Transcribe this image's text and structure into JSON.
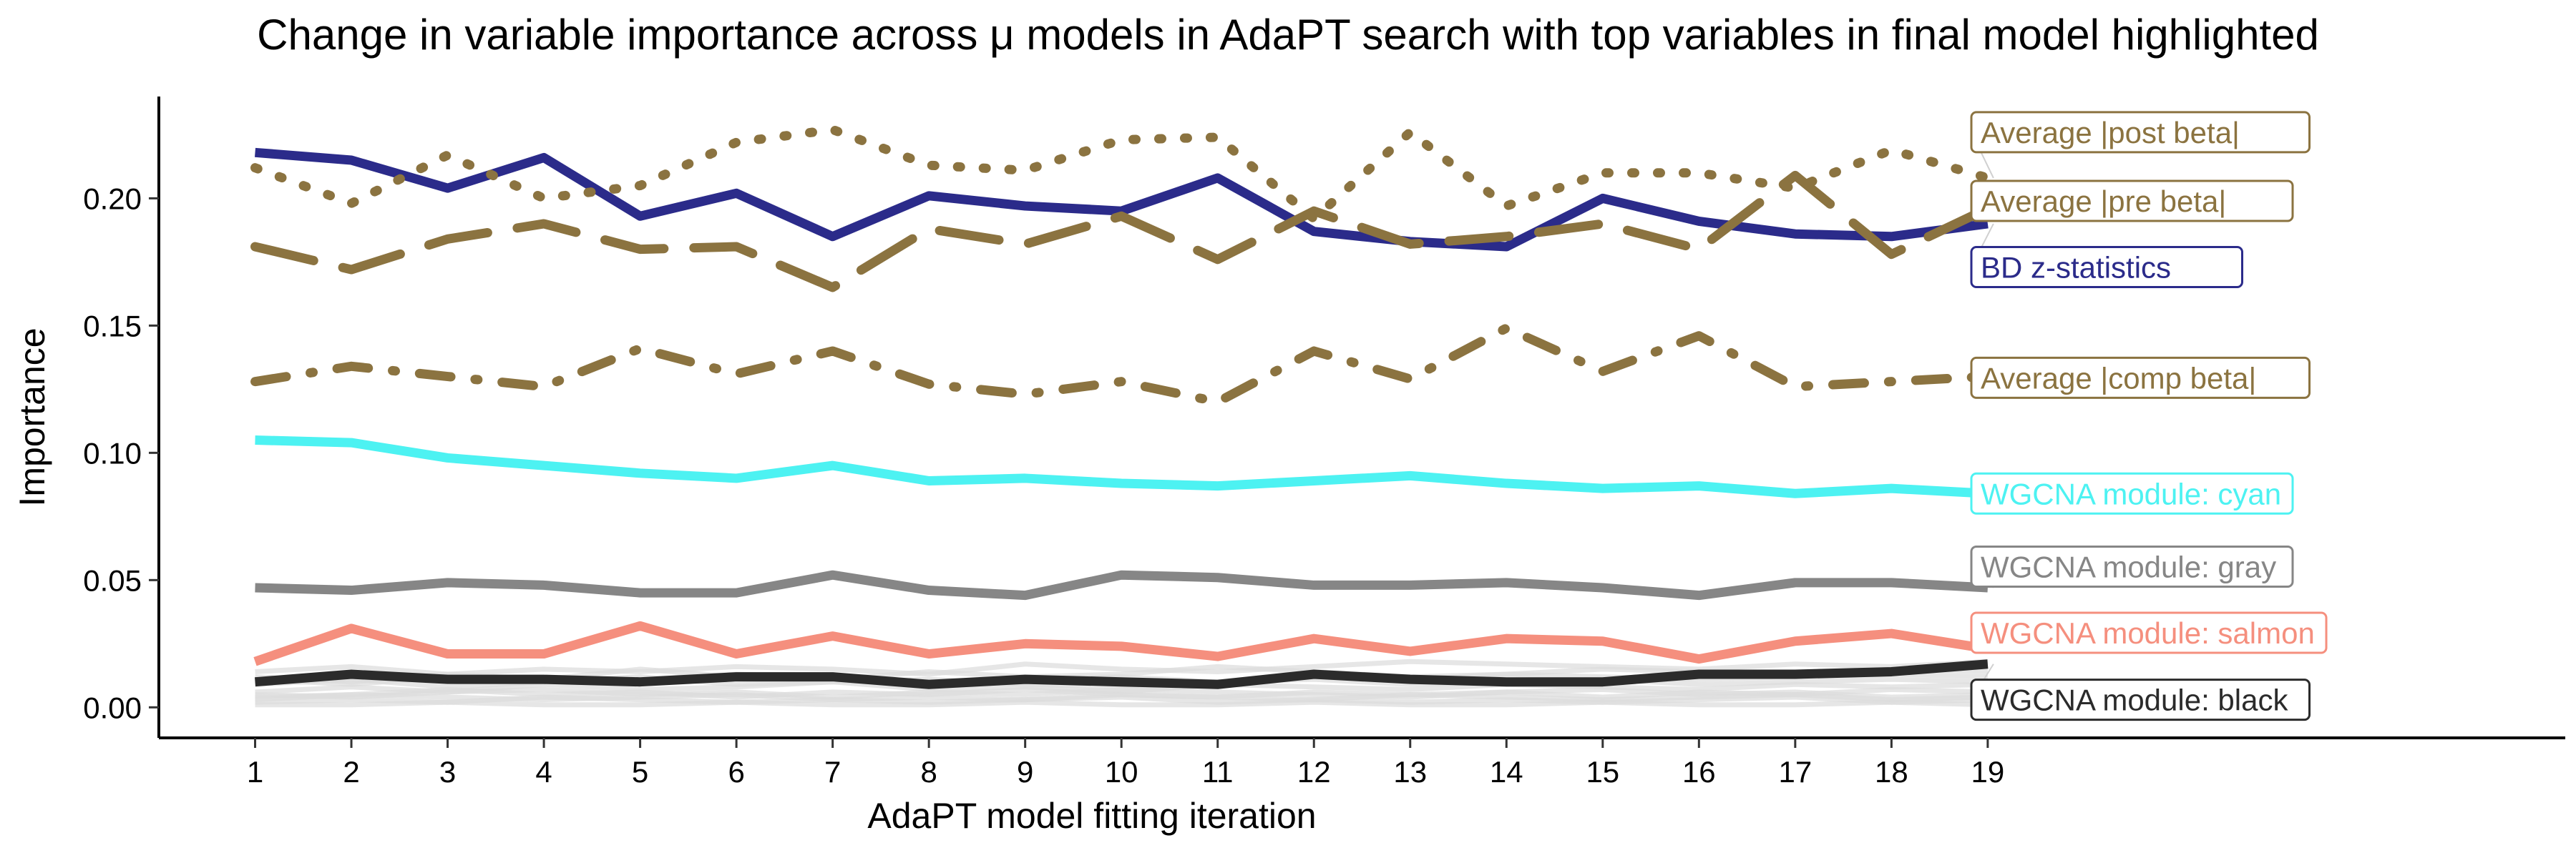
{
  "chart_data": {
    "type": "line",
    "title": "Change in variable importance across μ models in AdaPT search with top variables in final model highlighted",
    "xlabel": "AdaPT model fitting iteration",
    "ylabel": "Importance",
    "x": [
      1,
      2,
      3,
      4,
      5,
      6,
      7,
      8,
      9,
      10,
      11,
      12,
      13,
      14,
      15,
      16,
      17,
      18,
      19
    ],
    "xlim": [
      0,
      25
    ],
    "ylim": [
      -0.012,
      0.24
    ],
    "yticks": [
      0.0,
      0.05,
      0.1,
      0.15,
      0.2
    ],
    "ytick_labels": [
      "0.00",
      "0.05",
      "0.10",
      "0.15",
      "0.20"
    ],
    "grid": false,
    "legend": "direct labels at right end of lines",
    "series": [
      {
        "name": "Average |post beta|",
        "color": "#8B7340",
        "dash": "dotted",
        "values": [
          0.212,
          0.198,
          0.217,
          0.2,
          0.205,
          0.222,
          0.227,
          0.213,
          0.211,
          0.223,
          0.224,
          0.192,
          0.226,
          0.197,
          0.21,
          0.21,
          0.204,
          0.219,
          0.208
        ]
      },
      {
        "name": "Average |pre beta|",
        "color": "#8B7340",
        "dash": "longdash",
        "values": [
          0.181,
          0.172,
          0.184,
          0.19,
          0.18,
          0.181,
          0.165,
          0.188,
          0.182,
          0.193,
          0.176,
          0.195,
          0.182,
          0.185,
          0.19,
          0.18,
          0.209,
          0.178,
          0.196
        ]
      },
      {
        "name": "BD z-statistics",
        "color": "#2B2B8A",
        "dash": "solid",
        "values": [
          0.218,
          0.215,
          0.204,
          0.216,
          0.193,
          0.202,
          0.185,
          0.201,
          0.197,
          0.195,
          0.208,
          0.187,
          0.183,
          0.181,
          0.2,
          0.191,
          0.186,
          0.185,
          0.19
        ]
      },
      {
        "name": "Average |comp beta|",
        "color": "#8B7340",
        "dash": "dotdash",
        "values": [
          0.128,
          0.134,
          0.13,
          0.126,
          0.141,
          0.131,
          0.14,
          0.127,
          0.123,
          0.128,
          0.12,
          0.14,
          0.129,
          0.149,
          0.132,
          0.146,
          0.126,
          0.128,
          0.13
        ]
      },
      {
        "name": "WGCNA module: cyan",
        "color": "#4DF2F2",
        "dash": "solid",
        "values": [
          0.105,
          0.104,
          0.098,
          0.095,
          0.092,
          0.09,
          0.095,
          0.089,
          0.09,
          0.088,
          0.087,
          0.089,
          0.091,
          0.088,
          0.086,
          0.087,
          0.084,
          0.086,
          0.084
        ]
      },
      {
        "name": "WGCNA module: gray",
        "color": "#868686",
        "dash": "solid",
        "values": [
          0.047,
          0.046,
          0.049,
          0.048,
          0.045,
          0.045,
          0.052,
          0.046,
          0.044,
          0.052,
          0.051,
          0.048,
          0.048,
          0.049,
          0.047,
          0.044,
          0.049,
          0.049,
          0.047
        ]
      },
      {
        "name": "WGCNA module: salmon",
        "color": "#F58F7E",
        "dash": "solid",
        "values": [
          0.018,
          0.031,
          0.021,
          0.021,
          0.032,
          0.021,
          0.028,
          0.021,
          0.025,
          0.024,
          0.02,
          0.027,
          0.022,
          0.027,
          0.026,
          0.019,
          0.026,
          0.029,
          0.023
        ]
      },
      {
        "name": "WGCNA module: black",
        "color": "#2B2B2B",
        "dash": "solid",
        "values": [
          0.01,
          0.013,
          0.011,
          0.011,
          0.01,
          0.012,
          0.012,
          0.009,
          0.011,
          0.01,
          0.009,
          0.013,
          0.011,
          0.01,
          0.01,
          0.013,
          0.013,
          0.014,
          0.017
        ]
      }
    ],
    "background_series": {
      "color": "#DCDCDC",
      "values": [
        [
          0.006,
          0.008,
          0.006,
          0.009,
          0.007,
          0.008,
          0.01,
          0.007,
          0.008,
          0.006,
          0.009,
          0.008,
          0.007,
          0.009,
          0.008,
          0.007,
          0.009,
          0.008,
          0.009
        ],
        [
          0.004,
          0.005,
          0.007,
          0.005,
          0.006,
          0.004,
          0.006,
          0.005,
          0.007,
          0.005,
          0.004,
          0.006,
          0.005,
          0.006,
          0.004,
          0.006,
          0.005,
          0.007,
          0.006
        ],
        [
          0.012,
          0.01,
          0.013,
          0.011,
          0.015,
          0.012,
          0.011,
          0.014,
          0.012,
          0.013,
          0.016,
          0.014,
          0.012,
          0.013,
          0.015,
          0.014,
          0.012,
          0.015,
          0.014
        ],
        [
          0.002,
          0.003,
          0.002,
          0.004,
          0.003,
          0.002,
          0.003,
          0.002,
          0.003,
          0.004,
          0.002,
          0.003,
          0.002,
          0.003,
          0.002,
          0.003,
          0.004,
          0.002,
          0.003
        ],
        [
          0.009,
          0.011,
          0.008,
          0.01,
          0.012,
          0.009,
          0.01,
          0.011,
          0.009,
          0.008,
          0.01,
          0.011,
          0.009,
          0.01,
          0.011,
          0.009,
          0.01,
          0.011,
          0.01
        ],
        [
          0.001,
          0.001,
          0.002,
          0.001,
          0.001,
          0.002,
          0.001,
          0.001,
          0.002,
          0.001,
          0.001,
          0.002,
          0.001,
          0.001,
          0.002,
          0.001,
          0.001,
          0.002,
          0.001
        ],
        [
          0.014,
          0.016,
          0.013,
          0.015,
          0.014,
          0.016,
          0.015,
          0.013,
          0.017,
          0.015,
          0.014,
          0.016,
          0.018,
          0.017,
          0.016,
          0.015,
          0.017,
          0.016,
          0.018
        ],
        [
          0.005,
          0.004,
          0.006,
          0.007,
          0.005,
          0.006,
          0.004,
          0.006,
          0.005,
          0.007,
          0.006,
          0.005,
          0.004,
          0.006,
          0.007,
          0.005,
          0.006,
          0.004,
          0.005
        ],
        [
          0.003,
          0.005,
          0.004,
          0.003,
          0.004,
          0.005,
          0.003,
          0.004,
          0.003,
          0.005,
          0.004,
          0.003,
          0.005,
          0.004,
          0.003,
          0.004,
          0.005,
          0.003,
          0.004
        ],
        [
          0.011,
          0.009,
          0.012,
          0.01,
          0.011,
          0.013,
          0.012,
          0.01,
          0.011,
          0.012,
          0.01,
          0.012,
          0.011,
          0.013,
          0.012,
          0.011,
          0.012,
          0.013,
          0.012
        ]
      ]
    }
  }
}
